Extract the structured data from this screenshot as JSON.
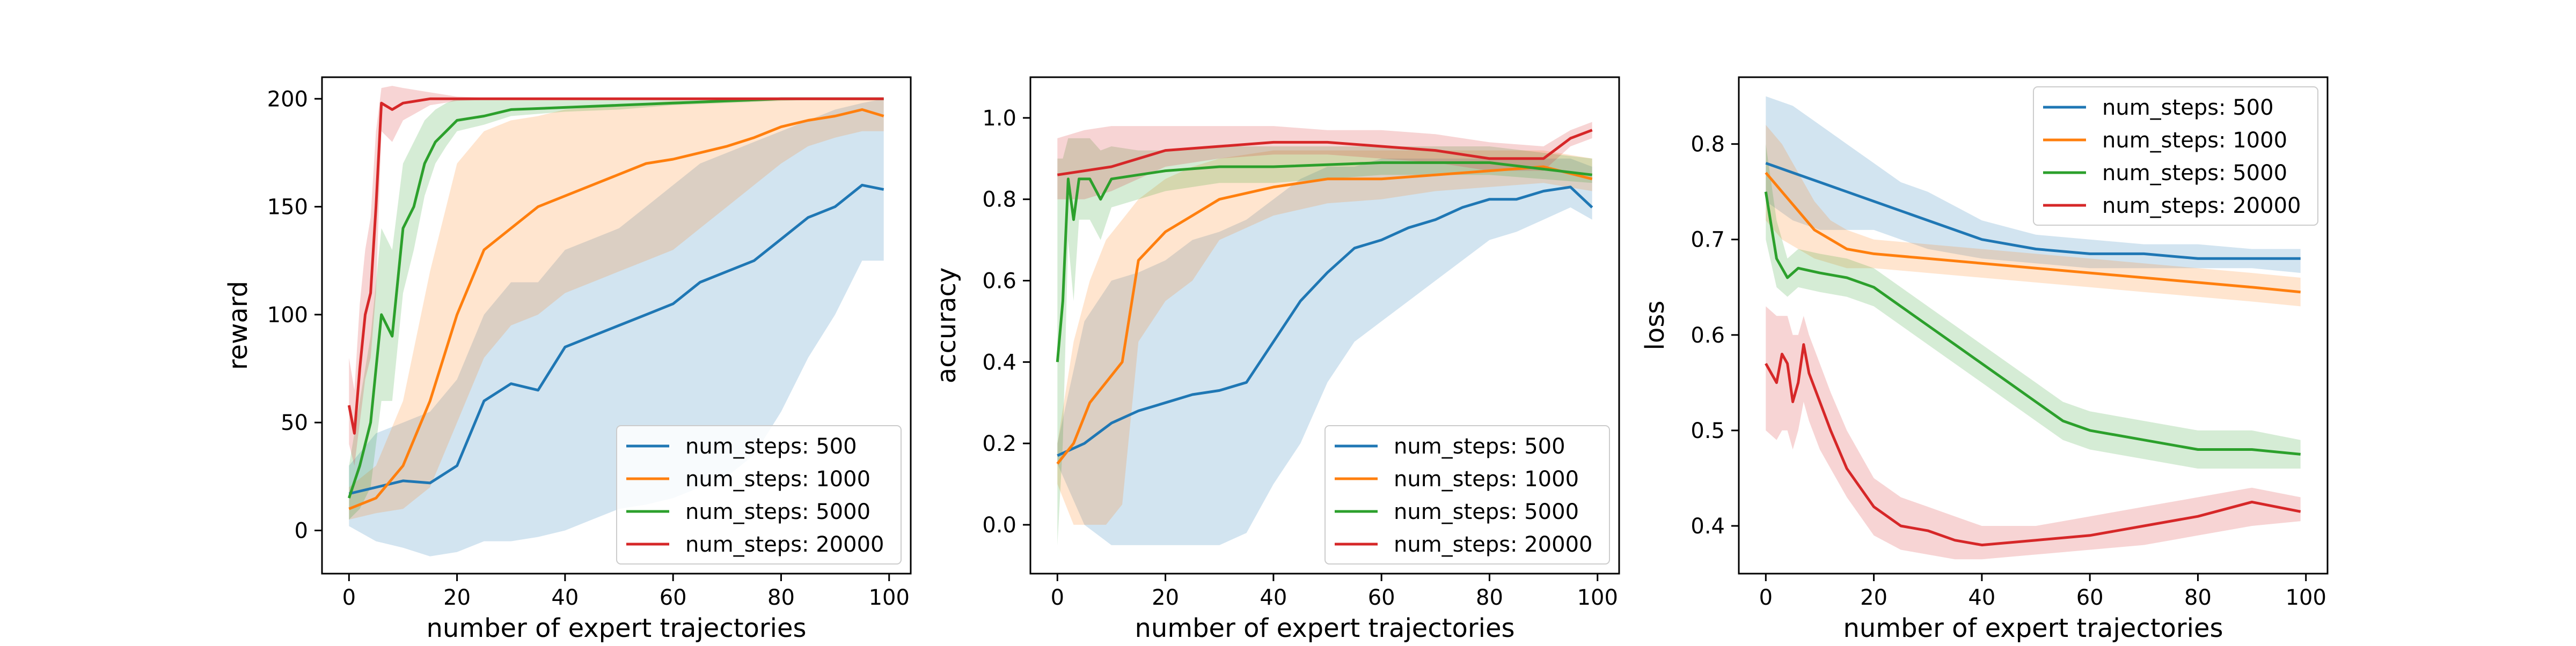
{
  "figure": {
    "x_label": "number of expert trajectories"
  },
  "colors": {
    "num_steps: 500": "#1f77b4",
    "num_steps: 1000": "#ff7f0e",
    "num_steps: 5000": "#2ca02c",
    "num_steps: 20000": "#d62728"
  },
  "chart_data": [
    {
      "type": "line",
      "title": "",
      "xlabel": "number of expert trajectories",
      "ylabel": "reward",
      "xlim": [
        -5,
        104
      ],
      "ylim": [
        -20,
        210
      ],
      "xticks": [
        0,
        20,
        40,
        60,
        80,
        100
      ],
      "yticks": [
        0,
        50,
        100,
        150,
        200
      ],
      "grid": false,
      "legend_position": "lower right",
      "series": [
        {
          "name": "num_steps: 500",
          "x": [
            0,
            5,
            10,
            15,
            20,
            25,
            30,
            35,
            40,
            45,
            50,
            55,
            60,
            65,
            70,
            75,
            80,
            85,
            90,
            95,
            99
          ],
          "y": [
            17,
            20,
            23,
            22,
            30,
            60,
            68,
            65,
            85,
            90,
            95,
            100,
            105,
            115,
            120,
            125,
            135,
            145,
            150,
            160,
            158
          ],
          "lower": [
            2,
            -5,
            -8,
            -12,
            -10,
            -5,
            -5,
            -3,
            0,
            5,
            10,
            12,
            15,
            20,
            25,
            35,
            55,
            80,
            100,
            125,
            125
          ],
          "upper": [
            30,
            45,
            50,
            55,
            70,
            100,
            115,
            115,
            130,
            135,
            140,
            150,
            160,
            170,
            175,
            180,
            185,
            190,
            195,
            198,
            200
          ]
        },
        {
          "name": "num_steps: 1000",
          "x": [
            0,
            5,
            10,
            15,
            20,
            25,
            30,
            35,
            40,
            45,
            50,
            55,
            60,
            65,
            70,
            75,
            80,
            85,
            90,
            95,
            99
          ],
          "y": [
            10,
            15,
            30,
            60,
            100,
            130,
            140,
            150,
            155,
            160,
            165,
            170,
            172,
            175,
            178,
            182,
            187,
            190,
            192,
            195,
            192
          ],
          "lower": [
            5,
            8,
            10,
            20,
            50,
            80,
            95,
            100,
            110,
            115,
            120,
            125,
            130,
            140,
            150,
            160,
            170,
            178,
            182,
            185,
            185
          ],
          "upper": [
            20,
            30,
            60,
            120,
            170,
            185,
            190,
            192,
            195,
            196,
            197,
            198,
            199,
            199,
            200,
            200,
            200,
            200,
            200,
            200,
            200
          ]
        },
        {
          "name": "num_steps: 5000",
          "x": [
            0,
            2,
            4,
            6,
            8,
            10,
            12,
            14,
            16,
            18,
            20,
            25,
            30,
            40,
            50,
            60,
            70,
            80,
            90,
            99
          ],
          "y": [
            15,
            30,
            50,
            100,
            90,
            140,
            150,
            170,
            180,
            185,
            190,
            192,
            195,
            196,
            197,
            198,
            199,
            200,
            200,
            200
          ],
          "lower": [
            5,
            10,
            20,
            60,
            60,
            110,
            130,
            155,
            170,
            178,
            185,
            188,
            192,
            194,
            195,
            197,
            198,
            199,
            200,
            200
          ],
          "upper": [
            30,
            60,
            90,
            140,
            130,
            170,
            180,
            190,
            195,
            198,
            200,
            200,
            200,
            200,
            200,
            200,
            200,
            200,
            200,
            200
          ]
        },
        {
          "name": "num_steps: 20000",
          "x": [
            0,
            1,
            2,
            3,
            4,
            5,
            6,
            8,
            10,
            15,
            20,
            30,
            40,
            60,
            80,
            99
          ],
          "y": [
            58,
            45,
            75,
            100,
            110,
            150,
            198,
            195,
            198,
            200,
            200,
            200,
            200,
            200,
            200,
            200
          ],
          "lower": [
            40,
            30,
            50,
            70,
            80,
            110,
            185,
            180,
            190,
            197,
            199,
            200,
            200,
            200,
            200,
            200
          ],
          "upper": [
            80,
            65,
            105,
            130,
            145,
            185,
            205,
            206,
            205,
            203,
            201,
            200,
            200,
            200,
            200,
            200
          ]
        }
      ]
    },
    {
      "type": "line",
      "title": "",
      "xlabel": "number of expert trajectories",
      "ylabel": "accuracy",
      "xlim": [
        -5,
        104
      ],
      "ylim": [
        -0.12,
        1.1
      ],
      "xticks": [
        0,
        20,
        40,
        60,
        80,
        100
      ],
      "yticks": [
        0.0,
        0.2,
        0.4,
        0.6,
        0.8,
        1.0
      ],
      "grid": false,
      "legend_position": "lower right",
      "series": [
        {
          "name": "num_steps: 500",
          "x": [
            0,
            5,
            10,
            15,
            20,
            25,
            30,
            35,
            40,
            45,
            50,
            55,
            60,
            65,
            70,
            75,
            80,
            85,
            90,
            95,
            99
          ],
          "y": [
            0.17,
            0.2,
            0.25,
            0.28,
            0.3,
            0.32,
            0.33,
            0.35,
            0.45,
            0.55,
            0.62,
            0.68,
            0.7,
            0.73,
            0.75,
            0.78,
            0.8,
            0.8,
            0.82,
            0.83,
            0.78
          ],
          "lower": [
            0.15,
            0.0,
            -0.05,
            -0.05,
            -0.05,
            -0.05,
            -0.05,
            -0.02,
            0.1,
            0.2,
            0.35,
            0.45,
            0.5,
            0.55,
            0.6,
            0.65,
            0.7,
            0.72,
            0.75,
            0.78,
            0.75
          ],
          "upper": [
            0.2,
            0.5,
            0.6,
            0.62,
            0.65,
            0.7,
            0.72,
            0.75,
            0.8,
            0.85,
            0.88,
            0.88,
            0.9,
            0.9,
            0.9,
            0.9,
            0.9,
            0.9,
            0.9,
            0.9,
            0.88
          ]
        },
        {
          "name": "num_steps: 1000",
          "x": [
            0,
            3,
            6,
            9,
            12,
            15,
            20,
            25,
            30,
            40,
            50,
            60,
            70,
            80,
            90,
            99
          ],
          "y": [
            0.15,
            0.2,
            0.3,
            0.35,
            0.4,
            0.65,
            0.72,
            0.76,
            0.8,
            0.83,
            0.85,
            0.85,
            0.86,
            0.87,
            0.88,
            0.85
          ],
          "lower": [
            0.1,
            0.0,
            0.0,
            0.0,
            0.05,
            0.45,
            0.55,
            0.6,
            0.7,
            0.76,
            0.79,
            0.8,
            0.82,
            0.83,
            0.84,
            0.82
          ],
          "upper": [
            0.2,
            0.45,
            0.6,
            0.7,
            0.75,
            0.8,
            0.85,
            0.88,
            0.9,
            0.92,
            0.92,
            0.92,
            0.92,
            0.92,
            0.92,
            0.9
          ]
        },
        {
          "name": "num_steps: 5000",
          "x": [
            0,
            1,
            2,
            3,
            4,
            6,
            8,
            10,
            15,
            20,
            30,
            40,
            60,
            80,
            99
          ],
          "y": [
            0.4,
            0.55,
            0.85,
            0.75,
            0.85,
            0.85,
            0.8,
            0.85,
            0.86,
            0.87,
            0.88,
            0.88,
            0.89,
            0.89,
            0.86
          ],
          "lower": [
            -0.05,
            0.2,
            0.7,
            0.55,
            0.75,
            0.75,
            0.7,
            0.78,
            0.8,
            0.82,
            0.84,
            0.84,
            0.86,
            0.86,
            0.84
          ],
          "upper": [
            0.9,
            0.9,
            0.95,
            0.95,
            0.95,
            0.95,
            0.92,
            0.93,
            0.92,
            0.92,
            0.93,
            0.93,
            0.93,
            0.93,
            0.9
          ],
          "bottom_draw": true
        },
        {
          "name": "num_steps: 20000",
          "x": [
            0,
            5,
            10,
            15,
            20,
            30,
            40,
            50,
            60,
            70,
            80,
            90,
            95,
            99
          ],
          "y": [
            0.86,
            0.87,
            0.88,
            0.9,
            0.92,
            0.93,
            0.94,
            0.94,
            0.93,
            0.92,
            0.9,
            0.9,
            0.95,
            0.97
          ],
          "lower": [
            0.8,
            0.8,
            0.82,
            0.85,
            0.88,
            0.9,
            0.91,
            0.91,
            0.9,
            0.89,
            0.87,
            0.87,
            0.93,
            0.95
          ],
          "upper": [
            0.95,
            0.97,
            0.98,
            0.98,
            0.98,
            0.98,
            0.98,
            0.97,
            0.97,
            0.96,
            0.94,
            0.93,
            0.97,
            0.99
          ]
        }
      ]
    },
    {
      "type": "line",
      "title": "",
      "xlabel": "number of expert trajectories",
      "ylabel": "loss",
      "xlim": [
        -5,
        104
      ],
      "ylim": [
        0.35,
        0.87
      ],
      "xticks": [
        0,
        20,
        40,
        60,
        80,
        100
      ],
      "yticks": [
        0.4,
        0.5,
        0.6,
        0.7,
        0.8
      ],
      "grid": false,
      "legend_position": "upper right",
      "series": [
        {
          "name": "num_steps: 500",
          "x": [
            0,
            5,
            10,
            15,
            20,
            25,
            30,
            40,
            50,
            60,
            70,
            80,
            90,
            99
          ],
          "y": [
            0.78,
            0.77,
            0.76,
            0.75,
            0.74,
            0.73,
            0.72,
            0.7,
            0.69,
            0.685,
            0.685,
            0.68,
            0.68,
            0.68
          ],
          "lower": [
            0.74,
            0.72,
            0.71,
            0.71,
            0.71,
            0.7,
            0.69,
            0.68,
            0.675,
            0.67,
            0.67,
            0.67,
            0.67,
            0.665
          ],
          "upper": [
            0.85,
            0.84,
            0.82,
            0.8,
            0.78,
            0.76,
            0.75,
            0.72,
            0.705,
            0.7,
            0.695,
            0.695,
            0.69,
            0.69
          ]
        },
        {
          "name": "num_steps: 1000",
          "x": [
            0,
            3,
            6,
            9,
            12,
            15,
            20,
            30,
            40,
            50,
            60,
            70,
            80,
            90,
            99
          ],
          "y": [
            0.77,
            0.75,
            0.73,
            0.71,
            0.7,
            0.69,
            0.685,
            0.68,
            0.675,
            0.67,
            0.665,
            0.66,
            0.655,
            0.65,
            0.645
          ],
          "lower": [
            0.72,
            0.7,
            0.69,
            0.68,
            0.675,
            0.67,
            0.67,
            0.665,
            0.66,
            0.655,
            0.65,
            0.645,
            0.64,
            0.635,
            0.63
          ],
          "upper": [
            0.82,
            0.8,
            0.77,
            0.74,
            0.72,
            0.71,
            0.7,
            0.695,
            0.69,
            0.685,
            0.68,
            0.675,
            0.67,
            0.665,
            0.66
          ]
        },
        {
          "name": "num_steps: 5000",
          "x": [
            0,
            2,
            4,
            6,
            10,
            15,
            20,
            25,
            30,
            35,
            40,
            45,
            50,
            55,
            60,
            70,
            80,
            90,
            99
          ],
          "y": [
            0.75,
            0.68,
            0.66,
            0.67,
            0.665,
            0.66,
            0.65,
            0.63,
            0.61,
            0.59,
            0.57,
            0.55,
            0.53,
            0.51,
            0.5,
            0.49,
            0.48,
            0.48,
            0.475
          ],
          "lower": [
            0.7,
            0.65,
            0.64,
            0.65,
            0.645,
            0.64,
            0.63,
            0.61,
            0.59,
            0.57,
            0.55,
            0.53,
            0.51,
            0.49,
            0.48,
            0.47,
            0.46,
            0.46,
            0.46
          ],
          "upper": [
            0.8,
            0.72,
            0.68,
            0.69,
            0.685,
            0.68,
            0.67,
            0.65,
            0.63,
            0.61,
            0.59,
            0.57,
            0.55,
            0.53,
            0.52,
            0.51,
            0.5,
            0.5,
            0.49
          ]
        },
        {
          "name": "num_steps: 20000",
          "x": [
            0,
            2,
            3,
            4,
            5,
            6,
            7,
            8,
            10,
            12,
            15,
            20,
            25,
            30,
            35,
            40,
            50,
            60,
            70,
            80,
            90,
            99
          ],
          "y": [
            0.57,
            0.55,
            0.58,
            0.57,
            0.53,
            0.55,
            0.59,
            0.56,
            0.53,
            0.5,
            0.46,
            0.42,
            0.4,
            0.395,
            0.385,
            0.38,
            0.385,
            0.39,
            0.4,
            0.41,
            0.425,
            0.415
          ],
          "lower": [
            0.5,
            0.49,
            0.5,
            0.5,
            0.48,
            0.5,
            0.53,
            0.51,
            0.48,
            0.46,
            0.43,
            0.39,
            0.375,
            0.37,
            0.365,
            0.365,
            0.37,
            0.375,
            0.38,
            0.39,
            0.4,
            0.405
          ],
          "upper": [
            0.63,
            0.62,
            0.62,
            0.62,
            0.6,
            0.6,
            0.62,
            0.6,
            0.57,
            0.54,
            0.5,
            0.45,
            0.43,
            0.42,
            0.41,
            0.4,
            0.4,
            0.41,
            0.42,
            0.43,
            0.44,
            0.43
          ]
        }
      ]
    }
  ]
}
